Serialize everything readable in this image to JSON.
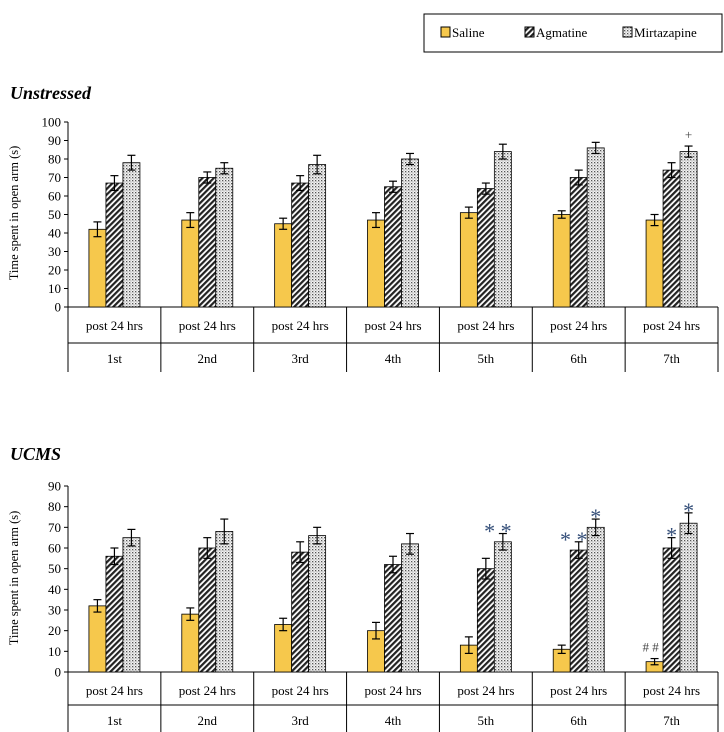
{
  "legend": {
    "entries": [
      "Saline",
      "Agmatine",
      "Mirtazapine"
    ]
  },
  "colors": {
    "saline": "#f6c84c",
    "hatch": "#222222",
    "dots": "#555555",
    "star": "#36507a"
  },
  "chart_data": [
    {
      "type": "bar",
      "title": "Unstressed",
      "ylabel": "Time spent in open arm (s)",
      "ylim": [
        0,
        100
      ],
      "yticks": [
        0,
        10,
        20,
        30,
        40,
        50,
        60,
        70,
        80,
        90,
        100
      ],
      "categories": [
        "post 24 hrs",
        "post 24 hrs",
        "post 24 hrs",
        "post 24 hrs",
        "post 24 hrs",
        "post 24 hrs",
        "post 24 hrs"
      ],
      "groups": [
        "1st",
        "2nd",
        "3rd",
        "4th",
        "5th",
        "6th",
        "7th"
      ],
      "series": [
        {
          "name": "Saline",
          "pattern": "solid",
          "values": [
            42,
            47,
            45,
            47,
            51,
            50,
            47
          ],
          "errors": [
            4,
            4,
            3,
            4,
            3,
            2,
            3
          ]
        },
        {
          "name": "Agmatine",
          "pattern": "hatch",
          "values": [
            67,
            70,
            67,
            65,
            64,
            70,
            74
          ],
          "errors": [
            4,
            3,
            4,
            3,
            3,
            4,
            4
          ]
        },
        {
          "name": "Mirtazapine",
          "pattern": "dots",
          "values": [
            78,
            75,
            77,
            80,
            84,
            86,
            84
          ],
          "errors": [
            4,
            3,
            5,
            3,
            4,
            3,
            3
          ]
        }
      ],
      "annotations": [
        {
          "series": "Mirtazapine",
          "group": "7th",
          "text": "+"
        }
      ],
      "legend_position": "top-right",
      "grid": false
    },
    {
      "type": "bar",
      "title": "UCMS",
      "ylabel": "Time spent in open arm (s)",
      "ylim": [
        0,
        90
      ],
      "yticks": [
        0,
        10,
        20,
        30,
        40,
        50,
        60,
        70,
        80,
        90
      ],
      "categories": [
        "post 24 hrs",
        "post 24 hrs",
        "post 24 hrs",
        "post 24 hrs",
        "post 24 hrs",
        "post 24 hrs",
        "post 24 hrs"
      ],
      "groups": [
        "1st",
        "2nd",
        "3rd",
        "4th",
        "5th",
        "6th",
        "7th"
      ],
      "series": [
        {
          "name": "Saline",
          "pattern": "solid",
          "values": [
            32,
            28,
            23,
            20,
            13,
            11,
            5
          ],
          "errors": [
            3,
            3,
            3,
            4,
            4,
            2,
            1.5
          ]
        },
        {
          "name": "Agmatine",
          "pattern": "hatch",
          "values": [
            56,
            60,
            58,
            52,
            50,
            59,
            60
          ],
          "errors": [
            4,
            5,
            5,
            4,
            5,
            4,
            5
          ]
        },
        {
          "name": "Mirtazapine",
          "pattern": "dots",
          "values": [
            65,
            68,
            66,
            62,
            63,
            70,
            72
          ],
          "errors": [
            4,
            6,
            4,
            5,
            4,
            4,
            5
          ]
        }
      ],
      "annotations": [
        {
          "series": "Mirtazapine",
          "group": "5th",
          "text": "* *"
        },
        {
          "series": "Agmatine",
          "group": "6th",
          "text": "* *"
        },
        {
          "series": "Mirtazapine",
          "group": "6th",
          "text": "*"
        },
        {
          "series": "Agmatine",
          "group": "7th",
          "text": "*"
        },
        {
          "series": "Mirtazapine",
          "group": "7th",
          "text": "*"
        },
        {
          "series": "Saline",
          "group": "7th",
          "text": "# #"
        }
      ],
      "grid": false
    }
  ]
}
